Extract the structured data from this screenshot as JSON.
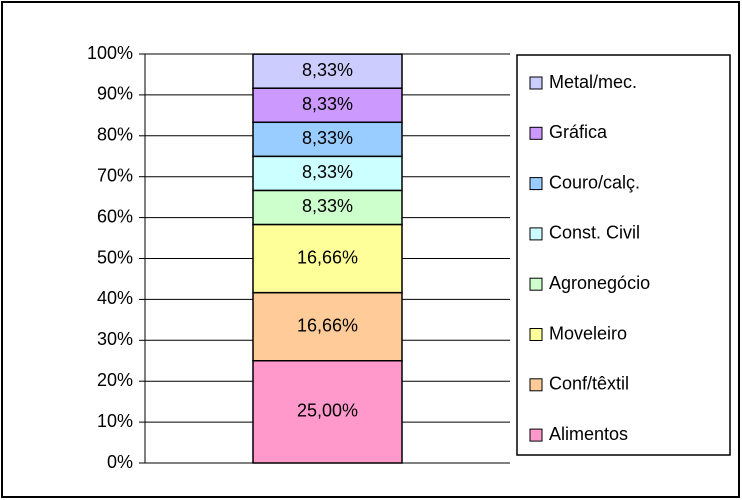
{
  "chart_data": {
    "type": "stacked_bar",
    "categories": [
      null
    ],
    "series": [
      {
        "name": "Alimentos",
        "color": "#ff99cc",
        "values": [
          25.0
        ],
        "value_labels": [
          "25,00%"
        ]
      },
      {
        "name": "Conf/têxtil",
        "color": "#ffcc99",
        "values": [
          16.66
        ],
        "value_labels": [
          "16,66%"
        ]
      },
      {
        "name": "Moveleiro",
        "color": "#ffff99",
        "values": [
          16.66
        ],
        "value_labels": [
          "16,66%"
        ]
      },
      {
        "name": "Agronegócio",
        "color": "#ccffcc",
        "values": [
          8.33
        ],
        "value_labels": [
          "8,33%"
        ]
      },
      {
        "name": "Const. Civil",
        "color": "#ccffff",
        "values": [
          8.33
        ],
        "value_labels": [
          "8,33%"
        ]
      },
      {
        "name": "Couro/calç.",
        "color": "#99ccff",
        "values": [
          8.33
        ],
        "value_labels": [
          "8,33%"
        ]
      },
      {
        "name": "Gráfica",
        "color": "#cc99ff",
        "values": [
          8.33
        ],
        "value_labels": [
          "8,33%"
        ]
      },
      {
        "name": "Metal/mec.",
        "color": "#ccccff",
        "values": [
          8.33
        ],
        "value_labels": [
          "8,33%"
        ]
      }
    ],
    "ylim": [
      0,
      100
    ],
    "yticks": [
      {
        "value": 0,
        "label": "0%"
      },
      {
        "value": 10,
        "label": "10%"
      },
      {
        "value": 20,
        "label": "20%"
      },
      {
        "value": 30,
        "label": "30%"
      },
      {
        "value": 40,
        "label": "40%"
      },
      {
        "value": 50,
        "label": "50%"
      },
      {
        "value": 60,
        "label": "60%"
      },
      {
        "value": 70,
        "label": "70%"
      },
      {
        "value": 80,
        "label": "80%"
      },
      {
        "value": 90,
        "label": "90%"
      },
      {
        "value": 100,
        "label": "100%"
      }
    ],
    "grid": true,
    "legend": "right"
  }
}
